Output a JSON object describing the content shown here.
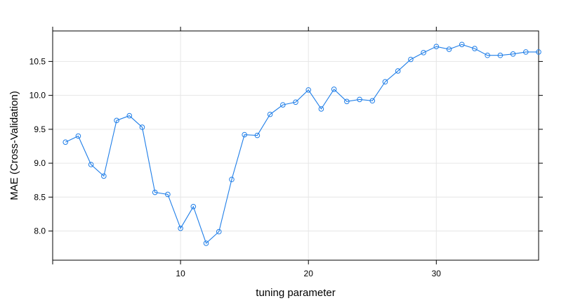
{
  "chart_data": {
    "type": "line",
    "xlabel": "tuning parameter",
    "ylabel": "MAE (Cross-Validation)",
    "xlim": [
      0,
      38
    ],
    "ylim": [
      7.57,
      10.95
    ],
    "x_ticks": [
      10,
      20,
      30
    ],
    "y_ticks": [
      8.0,
      8.5,
      9.0,
      9.5,
      10.0,
      10.5
    ],
    "x_tick_labels": [
      "10",
      "20",
      "30"
    ],
    "y_tick_labels": [
      "8.0",
      "8.5",
      "9.0",
      "9.5",
      "10.0",
      "10.5"
    ],
    "grid": true,
    "line_color": "#1f7ee8",
    "grid_color": "#e6e6e6",
    "series": [
      {
        "x": [
          1,
          2,
          3,
          4,
          5,
          6,
          7,
          8,
          9,
          10,
          11,
          12,
          13,
          14,
          15,
          16,
          17,
          18,
          19,
          20,
          21,
          22,
          23,
          24,
          25,
          26,
          27,
          28,
          29,
          30,
          31,
          32,
          33,
          34,
          35,
          36,
          37,
          38
        ],
        "values": [
          9.31,
          9.4,
          8.98,
          8.81,
          9.63,
          9.7,
          9.53,
          8.57,
          8.54,
          8.04,
          8.36,
          7.82,
          7.99,
          8.76,
          9.42,
          9.41,
          9.72,
          9.86,
          9.9,
          10.08,
          9.8,
          10.09,
          9.91,
          9.94,
          9.92,
          10.2,
          10.36,
          10.53,
          10.63,
          10.72,
          10.68,
          10.75,
          10.69,
          10.59,
          10.59,
          10.61,
          10.64,
          10.64
        ]
      }
    ]
  }
}
